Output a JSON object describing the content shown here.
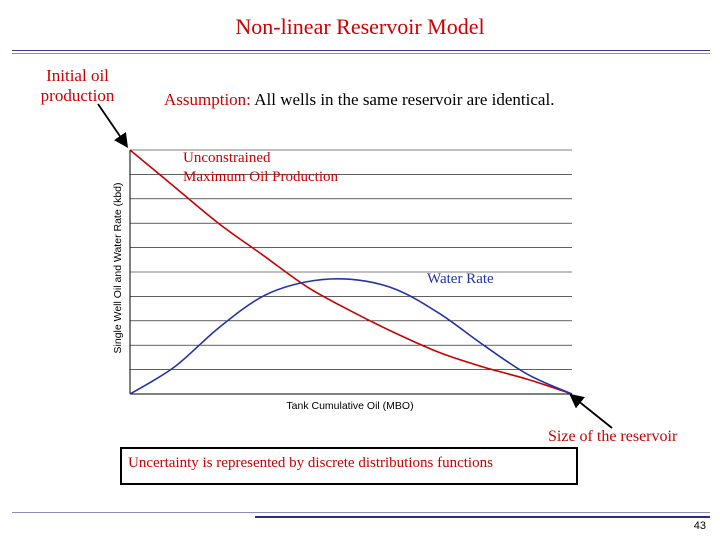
{
  "slide": {
    "title": "Non-linear Reservoir Model",
    "initial_label": "Initial oil production",
    "assumption_keyword": "Assumption:",
    "assumption_text": "All wells in the same reservoir are identical.",
    "size_label": "Size of the reservoir",
    "uncertainty_text": "Uncertainty is represented by discrete distributions functions",
    "page_number": "43"
  },
  "chart_data": {
    "type": "line",
    "title": "",
    "xlabel": "Tank Cumulative Oil (MBO)",
    "ylabel": "Single Well Oil and Water Rate (kbd)",
    "xlim": [
      0,
      1
    ],
    "ylim": [
      0,
      1
    ],
    "grid": true,
    "gridlines": 10,
    "series": [
      {
        "name": "Unconstrained Maximum Oil Production",
        "color": "#cc0000",
        "x": [
          0,
          0.1,
          0.2,
          0.3,
          0.4,
          0.5,
          0.6,
          0.7,
          0.8,
          0.9,
          1.0
        ],
        "y": [
          1.0,
          0.85,
          0.7,
          0.57,
          0.44,
          0.34,
          0.25,
          0.17,
          0.11,
          0.06,
          0.0
        ]
      },
      {
        "name": "Water Rate",
        "color": "#2233aa",
        "x": [
          0,
          0.1,
          0.2,
          0.3,
          0.4,
          0.5,
          0.6,
          0.7,
          0.8,
          0.9,
          1.0
        ],
        "y": [
          0.0,
          0.11,
          0.27,
          0.4,
          0.46,
          0.47,
          0.43,
          0.33,
          0.2,
          0.08,
          0.0
        ]
      }
    ],
    "annotations": [
      {
        "text": "Unconstrained",
        "color": "#cc0000"
      },
      {
        "text": "Maximum Oil Production",
        "color": "#cc0000"
      },
      {
        "text": "Water Rate",
        "color": "#2233aa"
      }
    ]
  }
}
